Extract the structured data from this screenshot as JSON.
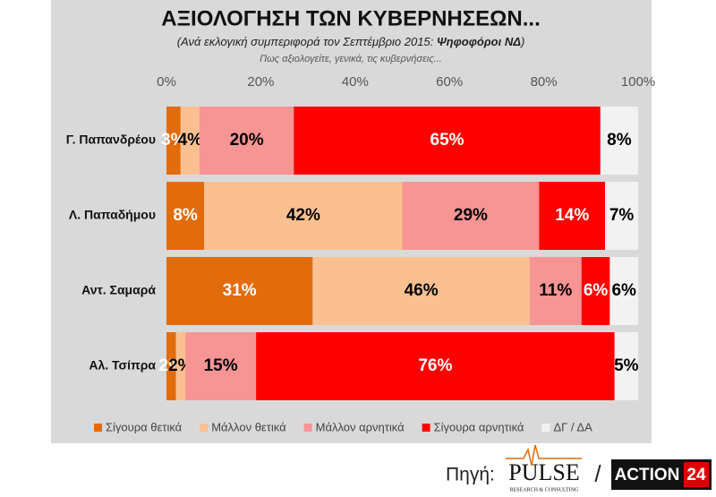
{
  "chart_data": {
    "type": "stacked_barh",
    "title": "ΑΞΙΟΛΟΓΗΣΗ ΤΩΝ ΚΥΒΕΡΝΗΣΕΩΝ...",
    "subtitle_parts": [
      "(Ανά εκλογική συμπεριφορά τον Σεπτέμβριο 2015: ",
      "Ψηφοφόροι ΝΔ",
      ")"
    ],
    "question": "Πως αξιολογείτε, γενικά, τις κυβερνήσεις...",
    "categories": [
      "Γ. Παπανδρέου",
      "Λ. Παπαδήμου",
      "Αντ. Σαμαρά",
      "Αλ. Τσίπρα"
    ],
    "series": [
      {
        "name": "Σίγουρα θετικά",
        "color": "#e36c0a",
        "label_color": "#ffffff",
        "values": [
          3,
          8,
          31,
          2
        ],
        "value_labels": [
          "3%",
          "8%",
          "31%",
          "2%"
        ]
      },
      {
        "name": "Μάλλον θετικά",
        "color": "#fac090",
        "label_color": "#000000",
        "values": [
          4,
          42,
          46,
          2
        ],
        "value_labels": [
          "4%",
          "42%",
          "46%",
          "2%"
        ]
      },
      {
        "name": "Μάλλον αρνητικά",
        "color": "#f79494",
        "label_color": "#000000",
        "values": [
          20,
          29,
          11,
          15
        ],
        "value_labels": [
          "20%",
          "29%",
          "11%",
          "15%"
        ]
      },
      {
        "name": "Σίγουρα αρνητικά",
        "color": "#ff0000",
        "label_color": "#ffffff",
        "values": [
          65,
          14,
          6,
          76
        ],
        "value_labels": [
          "65%",
          "14%",
          "6%",
          "76%"
        ]
      },
      {
        "name": "ΔΓ / ΔΑ",
        "color": "#f2f2f2",
        "label_color": "#000000",
        "values": [
          8,
          7,
          6,
          5
        ],
        "value_labels": [
          "8%",
          "7%",
          "6%",
          "5%"
        ]
      }
    ],
    "xlim": [
      0,
      100
    ],
    "xticks": [
      {
        "value": 0,
        "label": "0%"
      },
      {
        "value": 20,
        "label": "20%"
      },
      {
        "value": 40,
        "label": "40%"
      },
      {
        "value": 60,
        "label": "60%"
      },
      {
        "value": 80,
        "label": "80%"
      },
      {
        "value": 100,
        "label": "100%"
      }
    ],
    "legend": "bottom"
  },
  "footer": {
    "source": "Πηγή:",
    "pulse": "PULSE",
    "pulse_sub": "RESEARCH & CONSULTING",
    "separator": "/",
    "action": "ACTION",
    "action_num": "24"
  }
}
